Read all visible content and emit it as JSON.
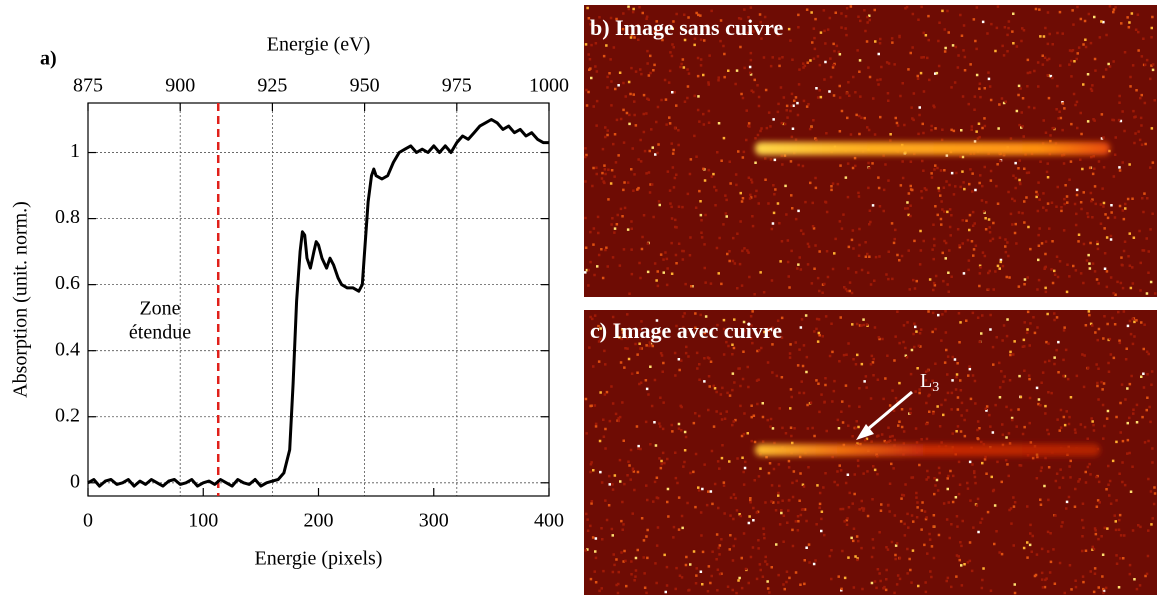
{
  "chart_data": {
    "type": "line",
    "panel_label": "a)",
    "x_label": "Energie (pixels)",
    "x2_label": "Energie (eV)",
    "y_label": "Absorption (unit. norm.)",
    "xlim": [
      0,
      400
    ],
    "xticks": [
      0,
      100,
      200,
      300,
      400
    ],
    "x2lim": [
      875,
      1000
    ],
    "x2ticks": [
      875,
      900,
      925,
      950,
      975,
      1000
    ],
    "ylim": [
      -0.04,
      1.15
    ],
    "yticks": [
      0,
      0.2,
      0.4,
      0.6,
      0.8,
      1
    ],
    "grid": true,
    "marker_line": {
      "x": 113,
      "color": "#e0201a"
    },
    "annotation": [
      "Zone",
      "étendue"
    ],
    "series": [
      {
        "color": "#000000",
        "x": [
          0,
          5,
          10,
          15,
          20,
          25,
          30,
          35,
          40,
          45,
          50,
          55,
          60,
          65,
          70,
          75,
          80,
          85,
          90,
          95,
          100,
          105,
          110,
          115,
          120,
          125,
          130,
          135,
          140,
          145,
          150,
          155,
          160,
          165,
          170,
          175,
          178,
          181,
          184,
          186,
          188,
          190,
          193,
          196,
          198,
          200,
          203,
          207,
          210,
          213,
          217,
          220,
          225,
          230,
          235,
          238,
          240,
          243,
          246,
          248,
          250,
          255,
          260,
          265,
          270,
          275,
          280,
          285,
          290,
          295,
          300,
          305,
          310,
          315,
          320,
          325,
          330,
          335,
          340,
          345,
          350,
          355,
          360,
          365,
          370,
          375,
          380,
          385,
          390,
          395,
          400
        ],
        "values": [
          0,
          0.01,
          -0.01,
          0.005,
          0.01,
          -0.005,
          0,
          0.01,
          -0.01,
          0.005,
          -0.005,
          0.01,
          0,
          -0.01,
          0.005,
          0.01,
          -0.005,
          0,
          0.01,
          -0.01,
          0,
          0.005,
          -0.005,
          0.01,
          0,
          -0.01,
          0.01,
          0,
          -0.005,
          0.01,
          -0.01,
          0,
          0.005,
          0.01,
          0.03,
          0.1,
          0.3,
          0.55,
          0.7,
          0.76,
          0.75,
          0.68,
          0.65,
          0.7,
          0.73,
          0.72,
          0.68,
          0.65,
          0.68,
          0.66,
          0.62,
          0.6,
          0.59,
          0.59,
          0.58,
          0.6,
          0.7,
          0.85,
          0.93,
          0.95,
          0.93,
          0.92,
          0.93,
          0.97,
          1.0,
          1.01,
          1.02,
          1.0,
          1.01,
          1.0,
          1.02,
          1.0,
          1.02,
          1.0,
          1.03,
          1.05,
          1.04,
          1.06,
          1.08,
          1.09,
          1.1,
          1.09,
          1.07,
          1.08,
          1.06,
          1.07,
          1.05,
          1.06,
          1.04,
          1.03,
          1.03
        ]
      }
    ]
  },
  "images": [
    {
      "label": "b) Image sans cuivre"
    },
    {
      "label": "c) Image avec cuivre",
      "annotation": {
        "text": "L",
        "subscript": "3"
      }
    }
  ]
}
